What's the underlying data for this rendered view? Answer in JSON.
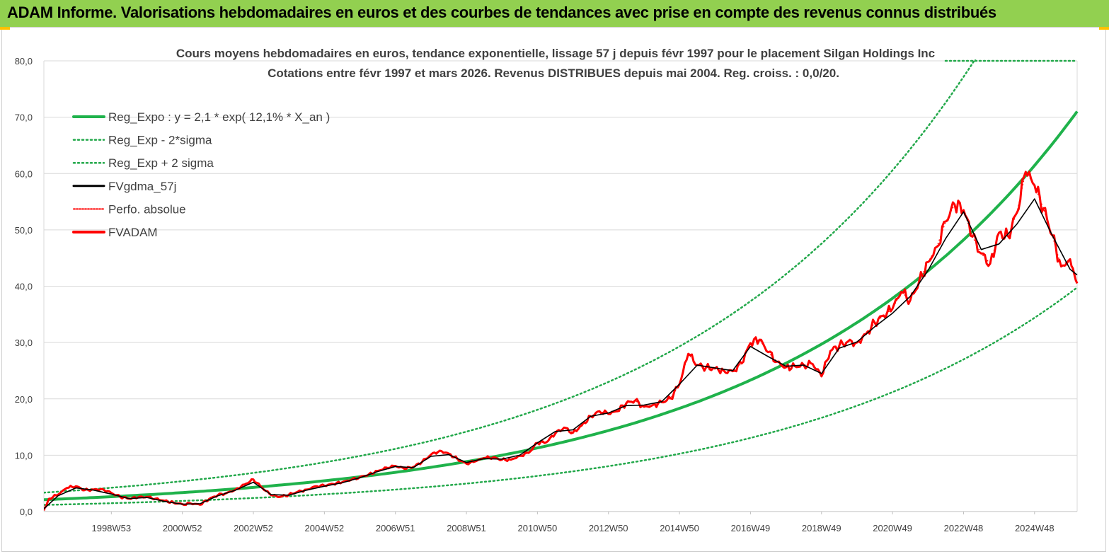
{
  "header": {
    "title": "ADAM Informe. Valorisations hebdomadaires en euros et des courbes de tendances avec prise en compte des revenus connus distribués"
  },
  "colors": {
    "header_bg": "#92d050",
    "green": "#1fb24b",
    "green_dotted": "#22a84a",
    "black": "#000000",
    "red": "#ff0000",
    "grid": "#d9d9d9"
  },
  "chart_data": {
    "type": "line",
    "title": "Cours moyens hebdomadaires en euros, tendance exponentielle, lissage 57 j depuis févr 1997 pour le placement Silgan Holdings Inc",
    "subtitle": "Cotations entre févr 1997 et mars 2026. Revenus DISTRIBUES depuis mai 2004. Reg.  croiss. : 0,0/20.",
    "xlabel": "",
    "ylabel": "",
    "ylim": [
      0,
      80
    ],
    "xlim": [
      1997.1,
      2026.2
    ],
    "y_ticks": [
      "0,0",
      "10,0",
      "20,0",
      "30,0",
      "40,0",
      "50,0",
      "60,0",
      "70,0",
      "80,0"
    ],
    "x_ticks": [
      {
        "label": "1998W53",
        "x": 1999.0
      },
      {
        "label": "2000W52",
        "x": 2001.0
      },
      {
        "label": "2002W52",
        "x": 2003.0
      },
      {
        "label": "2004W52",
        "x": 2005.0
      },
      {
        "label": "2006W51",
        "x": 2007.0
      },
      {
        "label": "2008W51",
        "x": 2009.0
      },
      {
        "label": "2010W50",
        "x": 2011.0
      },
      {
        "label": "2012W50",
        "x": 2013.0
      },
      {
        "label": "2014W50",
        "x": 2015.0
      },
      {
        "label": "2016W49",
        "x": 2017.0
      },
      {
        "label": "2018W49",
        "x": 2019.0
      },
      {
        "label": "2020W49",
        "x": 2021.0
      },
      {
        "label": "2022W48",
        "x": 2023.0
      },
      {
        "label": "2024W48",
        "x": 2025.0
      }
    ],
    "legend": [
      {
        "name": "Reg_Expo : y = 2,1 * exp( 12,1% *  X_an )",
        "style": "solid-green"
      },
      {
        "name": "Reg_Exp - 2*sigma",
        "style": "dotted-green"
      },
      {
        "name": "Reg_Exp + 2 sigma",
        "style": "dotted-green"
      },
      {
        "name": "FVgdma_57j",
        "style": "solid-black"
      },
      {
        "name": "Perfo. absolue",
        "style": "dotted-red"
      },
      {
        "name": "FVADAM",
        "style": "solid-red"
      }
    ],
    "regression": {
      "a": 2.1,
      "rate": 0.121,
      "lower_factor": 0.56,
      "upper_factor": 1.6
    },
    "series": [
      {
        "name": "FVADAM",
        "x": [
          1997.1,
          1997.25,
          1997.5,
          1997.75,
          1998.0,
          1998.25,
          1998.5,
          1998.75,
          1999.0,
          1999.25,
          1999.5,
          1999.75,
          2000.0,
          2000.25,
          2000.5,
          2000.75,
          2001.0,
          2001.25,
          2001.5,
          2001.75,
          2002.0,
          2002.25,
          2002.5,
          2002.75,
          2003.0,
          2003.25,
          2003.5,
          2003.75,
          2004.0,
          2004.25,
          2004.5,
          2004.75,
          2005.0,
          2005.25,
          2005.5,
          2005.75,
          2006.0,
          2006.25,
          2006.5,
          2006.75,
          2007.0,
          2007.25,
          2007.5,
          2007.75,
          2008.0,
          2008.25,
          2008.5,
          2008.75,
          2009.0,
          2009.25,
          2009.5,
          2009.75,
          2010.0,
          2010.25,
          2010.5,
          2010.75,
          2011.0,
          2011.25,
          2011.5,
          2011.75,
          2012.0,
          2012.25,
          2012.5,
          2012.75,
          2013.0,
          2013.25,
          2013.5,
          2013.75,
          2014.0,
          2014.25,
          2014.5,
          2014.75,
          2015.0,
          2015.25,
          2015.5,
          2015.75,
          2016.0,
          2016.25,
          2016.5,
          2016.75,
          2017.0,
          2017.25,
          2017.5,
          2017.75,
          2018.0,
          2018.25,
          2018.5,
          2018.75,
          2019.0,
          2019.25,
          2019.5,
          2019.75,
          2020.0,
          2020.25,
          2020.5,
          2020.75,
          2021.0,
          2021.25,
          2021.5,
          2021.75,
          2022.0,
          2022.25,
          2022.5,
          2022.75,
          2023.0,
          2023.25,
          2023.5,
          2023.75,
          2024.0,
          2024.25,
          2024.5,
          2024.75,
          2025.0,
          2025.25,
          2025.5,
          2025.75,
          2026.0,
          2026.2
        ],
        "y": [
          0.2,
          2.3,
          3.0,
          4.2,
          4.5,
          3.8,
          3.9,
          4.0,
          3.3,
          2.6,
          2.3,
          2.5,
          2.6,
          2.3,
          1.9,
          1.6,
          1.3,
          1.4,
          1.2,
          2.2,
          2.9,
          3.3,
          3.9,
          4.8,
          5.7,
          4.2,
          2.9,
          2.6,
          3.0,
          3.5,
          3.9,
          4.5,
          4.6,
          4.9,
          5.2,
          5.6,
          6.1,
          6.6,
          7.2,
          7.8,
          8.1,
          7.6,
          7.9,
          8.8,
          10.1,
          10.8,
          10.3,
          9.3,
          8.5,
          8.9,
          9.5,
          9.6,
          9.2,
          9.2,
          9.9,
          10.4,
          12.2,
          12.3,
          13.8,
          14.9,
          14.0,
          15.3,
          16.9,
          17.8,
          17.3,
          17.8,
          19.2,
          19.7,
          18.6,
          18.9,
          19.4,
          20.1,
          22.6,
          28.0,
          26.0,
          25.6,
          25.4,
          25.0,
          24.9,
          26.3,
          29.9,
          30.5,
          28.3,
          26.6,
          25.6,
          25.8,
          26.0,
          26.2,
          24.0,
          28.5,
          29.4,
          30.2,
          30.0,
          31.5,
          33.5,
          34.8,
          36.0,
          39.0,
          37.5,
          40.8,
          44.3,
          47.0,
          51.5,
          54.5,
          53.5,
          48.8,
          45.8,
          44.0,
          49.5,
          48.9,
          53.0,
          60.3,
          57.9,
          53.8,
          49.0,
          43.5,
          44.8,
          40.5
        ]
      },
      {
        "name": "FVgdma_57j",
        "x": [
          1997.1,
          1997.5,
          1998.0,
          1998.5,
          1999.0,
          1999.5,
          2000.0,
          2000.5,
          2001.0,
          2001.5,
          2002.0,
          2002.5,
          2003.0,
          2003.5,
          2004.0,
          2004.5,
          2005.0,
          2005.5,
          2006.0,
          2006.5,
          2007.0,
          2007.5,
          2008.0,
          2008.5,
          2009.0,
          2009.5,
          2010.0,
          2010.5,
          2011.0,
          2011.5,
          2012.0,
          2012.5,
          2013.0,
          2013.5,
          2014.0,
          2014.5,
          2015.0,
          2015.5,
          2016.0,
          2016.5,
          2017.0,
          2017.5,
          2018.0,
          2018.5,
          2019.0,
          2019.5,
          2020.0,
          2020.5,
          2021.0,
          2021.5,
          2022.0,
          2022.5,
          2023.0,
          2023.5,
          2024.0,
          2024.5,
          2025.0,
          2025.5,
          2026.0,
          2026.2
        ],
        "y": [
          0.5,
          2.8,
          4.2,
          3.8,
          3.1,
          2.3,
          2.5,
          1.8,
          1.3,
          1.4,
          2.8,
          3.8,
          5.2,
          3.0,
          2.9,
          3.8,
          4.5,
          5.1,
          6.0,
          7.1,
          8.0,
          7.8,
          9.8,
          10.1,
          8.7,
          9.4,
          9.3,
          10.0,
          12.2,
          14.2,
          14.5,
          16.9,
          17.5,
          18.8,
          18.9,
          19.5,
          22.6,
          26.0,
          25.5,
          25.0,
          29.3,
          27.5,
          25.8,
          26.0,
          24.5,
          29.0,
          30.1,
          32.8,
          35.2,
          38.2,
          42.8,
          48.5,
          53.2,
          46.5,
          47.5,
          51.0,
          55.5,
          49.0,
          43.0,
          42.0
        ]
      }
    ]
  }
}
